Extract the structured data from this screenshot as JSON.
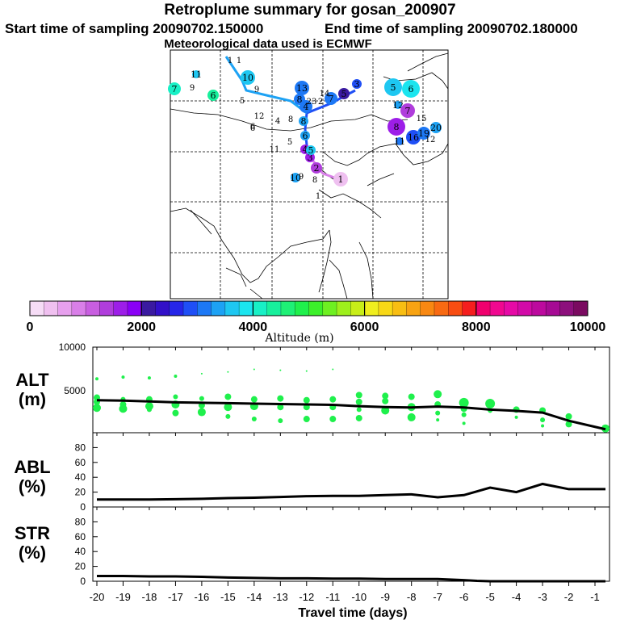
{
  "header": {
    "title": "Retroplume summary for gosan_200907",
    "start": "Start time of sampling 20090702.150000",
    "end": "End time of sampling 20090702.180000",
    "met": "Meteorological data used is ECMWF"
  },
  "colorbar": {
    "colors": [
      "#f6dcf6",
      "#f0c0f0",
      "#e7a0ee",
      "#d97fe8",
      "#c85ee0",
      "#b03ddc",
      "#9d1ee8",
      "#8a00f6",
      "#3a1aa0",
      "#3210c8",
      "#2626e8",
      "#1f4ff6",
      "#1d78f5",
      "#1da2f4",
      "#1ec7f1",
      "#1be5ef",
      "#18f0c6",
      "#18f09c",
      "#1ef076",
      "#1ff04c",
      "#3cf02a",
      "#6ef021",
      "#9ef01c",
      "#c8ee18",
      "#f0ee1e",
      "#f8d816",
      "#f8be12",
      "#f8a312",
      "#f88812",
      "#f86a12",
      "#f84d12",
      "#f51e1e",
      "#f0006e",
      "#f00890",
      "#e60aa6",
      "#d20aa8",
      "#bc0a9e",
      "#a60a94",
      "#8c107c",
      "#7a0a60"
    ],
    "tick_labels": [
      "0",
      "2000",
      "4000",
      "6000",
      "8000",
      "10000"
    ],
    "label": "Altitude (m)"
  },
  "map": {
    "markers": [
      {
        "label": "1",
        "color": "#efc0f0",
        "size": 9
      },
      {
        "label": "2",
        "color": "#b03ddc",
        "size": 7
      },
      {
        "label": "3",
        "color": "#9d1ee8",
        "size": 6
      },
      {
        "label": "4",
        "color": "#9d1ee8",
        "size": 6
      },
      {
        "label": "5",
        "color": "#1ec7f1",
        "size": 6
      },
      {
        "label": "6",
        "color": "#1da2f4",
        "size": 6
      },
      {
        "label": "11",
        "color": "#1d78f5",
        "size": 5
      },
      {
        "label": "12",
        "color": "#1da2f4",
        "size": 5
      },
      {
        "label": "4",
        "color": "#1f4ff6",
        "size": 5
      },
      {
        "label": "6",
        "color": "#18f09c",
        "size": 7
      },
      {
        "label": "7",
        "color": "#18f0c6",
        "size": 8
      },
      {
        "label": "11",
        "color": "#1ec7f1",
        "size": 5
      },
      {
        "label": "10",
        "color": "#1ec7f1",
        "size": 9
      },
      {
        "label": "13",
        "color": "#1d78f5",
        "size": 9
      },
      {
        "label": "8",
        "color": "#1d78f5",
        "size": 7
      },
      {
        "label": "7",
        "color": "#1d78f5",
        "size": 8
      },
      {
        "label": "5",
        "color": "#3a1aa0",
        "size": 7
      },
      {
        "label": "4",
        "color": "#1d78f5",
        "size": 8
      },
      {
        "label": "8",
        "color": "#1da2f4",
        "size": 6
      },
      {
        "label": "5",
        "color": "#1ec7f1",
        "size": 11
      },
      {
        "label": "6",
        "color": "#1be5ef",
        "size": 11
      },
      {
        "label": "8",
        "color": "#9d1ee8",
        "size": 11
      },
      {
        "label": "7",
        "color": "#b03ddc",
        "size": 9
      },
      {
        "label": "16",
        "color": "#1f4ff6",
        "size": 9
      },
      {
        "label": "19",
        "color": "#1d78f5",
        "size": 8
      },
      {
        "label": "20",
        "color": "#1da2f4",
        "size": 7
      },
      {
        "label": "10",
        "color": "#1da2f4",
        "size": 6
      },
      {
        "label": "3",
        "color": "#1f4ff6",
        "size": 6
      }
    ],
    "extra_labels": [
      "1",
      "1",
      "5",
      "9",
      "6",
      "12",
      "5",
      "8",
      "9",
      "11",
      "4",
      "6",
      "14",
      "23",
      "12",
      "2",
      "1",
      "15",
      "8",
      "9"
    ]
  },
  "chart_data": [
    {
      "type": "scatter",
      "panel": "ALT",
      "title": "",
      "ylabel": "ALT (m)",
      "xlabel": "Travel time (days)",
      "xlim": [
        -20,
        0
      ],
      "ylim": [
        0,
        10000
      ],
      "yticks": [
        5000,
        10000
      ],
      "mean_line": {
        "x": [
          -20,
          -19,
          -18,
          -17,
          -16,
          -15,
          -14,
          -13,
          -12,
          -11,
          -10,
          -9,
          -8,
          -7,
          -6,
          -5,
          -4,
          -3,
          -2,
          -0.6
        ],
        "y": [
          3800,
          3750,
          3650,
          3550,
          3500,
          3450,
          3400,
          3350,
          3300,
          3250,
          3100,
          3000,
          2950,
          3050,
          2950,
          2700,
          2550,
          2350,
          1400,
          400
        ]
      },
      "points": [
        {
          "x": -20,
          "y": 6300,
          "s": 2
        },
        {
          "x": -20,
          "y": 4100,
          "s": 4
        },
        {
          "x": -20,
          "y": 3600,
          "s": 4
        },
        {
          "x": -20,
          "y": 2900,
          "s": 5
        },
        {
          "x": -19,
          "y": 6500,
          "s": 2
        },
        {
          "x": -19,
          "y": 3900,
          "s": 3
        },
        {
          "x": -19,
          "y": 3300,
          "s": 4
        },
        {
          "x": -19,
          "y": 2800,
          "s": 5
        },
        {
          "x": -18,
          "y": 6400,
          "s": 2
        },
        {
          "x": -18,
          "y": 3900,
          "s": 4
        },
        {
          "x": -18,
          "y": 3100,
          "s": 5
        },
        {
          "x": -18,
          "y": 2700,
          "s": 3
        },
        {
          "x": -17,
          "y": 6600,
          "s": 2
        },
        {
          "x": -17,
          "y": 4200,
          "s": 3
        },
        {
          "x": -17,
          "y": 3300,
          "s": 5
        },
        {
          "x": -17,
          "y": 2300,
          "s": 4
        },
        {
          "x": -16,
          "y": 6900,
          "s": 1
        },
        {
          "x": -16,
          "y": 4000,
          "s": 3
        },
        {
          "x": -16,
          "y": 3200,
          "s": 4
        },
        {
          "x": -16,
          "y": 2400,
          "s": 5
        },
        {
          "x": -15,
          "y": 7100,
          "s": 1
        },
        {
          "x": -15,
          "y": 4200,
          "s": 4
        },
        {
          "x": -15,
          "y": 3000,
          "s": 5
        },
        {
          "x": -15,
          "y": 1900,
          "s": 3
        },
        {
          "x": -14,
          "y": 7400,
          "s": 1
        },
        {
          "x": -14,
          "y": 3900,
          "s": 4
        },
        {
          "x": -14,
          "y": 3100,
          "s": 5
        },
        {
          "x": -14,
          "y": 1600,
          "s": 3
        },
        {
          "x": -13,
          "y": 7300,
          "s": 1
        },
        {
          "x": -13,
          "y": 4000,
          "s": 4
        },
        {
          "x": -13,
          "y": 3000,
          "s": 4
        },
        {
          "x": -13,
          "y": 1400,
          "s": 3
        },
        {
          "x": -12,
          "y": 7200,
          "s": 1
        },
        {
          "x": -12,
          "y": 3800,
          "s": 4
        },
        {
          "x": -12,
          "y": 3000,
          "s": 4
        },
        {
          "x": -12,
          "y": 1600,
          "s": 4
        },
        {
          "x": -11,
          "y": 7400,
          "s": 1
        },
        {
          "x": -11,
          "y": 3900,
          "s": 4
        },
        {
          "x": -11,
          "y": 3000,
          "s": 4
        },
        {
          "x": -11,
          "y": 1600,
          "s": 4
        },
        {
          "x": -10,
          "y": 4400,
          "s": 4
        },
        {
          "x": -10,
          "y": 3600,
          "s": 4
        },
        {
          "x": -10,
          "y": 2700,
          "s": 3
        },
        {
          "x": -10,
          "y": 1700,
          "s": 4
        },
        {
          "x": -9,
          "y": 4300,
          "s": 4
        },
        {
          "x": -9,
          "y": 3700,
          "s": 4
        },
        {
          "x": -9,
          "y": 2600,
          "s": 5
        },
        {
          "x": -8,
          "y": 4200,
          "s": 4
        },
        {
          "x": -8,
          "y": 3000,
          "s": 5
        },
        {
          "x": -8,
          "y": 1800,
          "s": 5
        },
        {
          "x": -7,
          "y": 4500,
          "s": 5
        },
        {
          "x": -7,
          "y": 3300,
          "s": 4
        },
        {
          "x": -7,
          "y": 2300,
          "s": 3
        },
        {
          "x": -7,
          "y": 1500,
          "s": 2
        },
        {
          "x": -6,
          "y": 3500,
          "s": 6
        },
        {
          "x": -6,
          "y": 2800,
          "s": 4
        },
        {
          "x": -6,
          "y": 2100,
          "s": 3
        },
        {
          "x": -6,
          "y": 1100,
          "s": 2
        },
        {
          "x": -5,
          "y": 3400,
          "s": 6
        },
        {
          "x": -5,
          "y": 2600,
          "s": 3
        },
        {
          "x": -4,
          "y": 2700,
          "s": 4
        },
        {
          "x": -4,
          "y": 1800,
          "s": 2
        },
        {
          "x": -3,
          "y": 2600,
          "s": 4
        },
        {
          "x": -3,
          "y": 1500,
          "s": 3
        },
        {
          "x": -3,
          "y": 800,
          "s": 2
        },
        {
          "x": -2,
          "y": 1900,
          "s": 4
        },
        {
          "x": -2,
          "y": 1000,
          "s": 4
        },
        {
          "x": -0.6,
          "y": 500,
          "s": 5
        }
      ]
    },
    {
      "type": "line",
      "panel": "ABL",
      "ylabel": "ABL (%)",
      "ylim": [
        0,
        100
      ],
      "yticks": [
        0,
        20,
        40,
        60,
        80
      ],
      "x": [
        -20,
        -19,
        -18,
        -17,
        -16,
        -15,
        -14,
        -13,
        -12,
        -11,
        -10,
        -9,
        -8,
        -7,
        -6,
        -5,
        -4,
        -3,
        -2,
        -1,
        -0.6
      ],
      "y": [
        10,
        10,
        10,
        10.5,
        11,
        12,
        12.5,
        13.5,
        14.5,
        15,
        15,
        16,
        17,
        13,
        16,
        26,
        20,
        31,
        24,
        24,
        24
      ]
    },
    {
      "type": "line",
      "panel": "STR",
      "ylabel": "STR (%)",
      "ylim": [
        0,
        100
      ],
      "yticks": [
        0,
        20,
        40,
        60,
        80
      ],
      "x": [
        -20,
        -19,
        -18,
        -17,
        -16,
        -15,
        -14,
        -13,
        -12,
        -11,
        -10,
        -9,
        -8,
        -7,
        -6,
        -5.5,
        -5,
        -4,
        -3,
        -2,
        -1,
        -0.6
      ],
      "y": [
        7,
        7,
        6.5,
        6.5,
        6,
        5,
        4.5,
        4,
        4,
        3.5,
        3.5,
        3,
        3,
        3,
        1.5,
        0.5,
        0,
        0,
        0,
        0,
        0,
        0
      ],
      "x_tick_labels": [
        "-20",
        "-19",
        "-18",
        "-17",
        "-16",
        "-15",
        "-14",
        "-13",
        "-12",
        "-11",
        "-10",
        "-9",
        "-8",
        "-7",
        "-6",
        "-5",
        "-4",
        "-3",
        "-2",
        "-1"
      ]
    }
  ],
  "panels": {
    "alt_label_1": "ALT",
    "alt_label_2": "(m)",
    "abl_label_1": "ABL",
    "abl_label_2": "(%)",
    "str_label_1": "STR",
    "str_label_2": "(%)",
    "alt_tick_5000": "5000",
    "alt_tick_10000": "10000",
    "xlabel": "Travel time (days)"
  }
}
